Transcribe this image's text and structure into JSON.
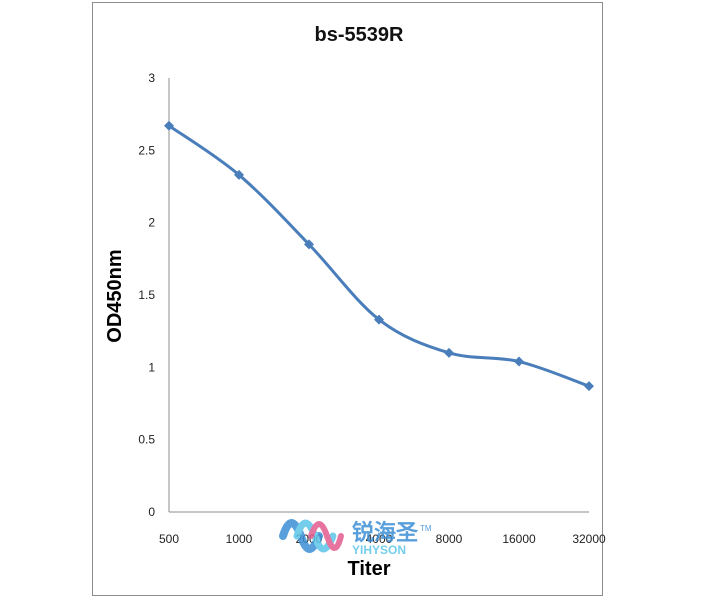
{
  "chart_data": {
    "type": "line",
    "title": "bs-5539R",
    "xlabel": "Titer",
    "ylabel": "OD450nm",
    "categories": [
      "500",
      "1000",
      "2000",
      "4000",
      "8000",
      "16000",
      "32000"
    ],
    "series": [
      {
        "values": [
          2.67,
          2.33,
          1.85,
          1.33,
          1.1,
          1.04,
          0.87
        ]
      }
    ],
    "ylim": [
      0,
      3
    ],
    "yticks": [
      "0",
      "0.5",
      "1",
      "1.5",
      "2",
      "2.5",
      "3"
    ],
    "grid": false,
    "legend": "none",
    "series_color": "#4a7ebb",
    "marker": "diamond"
  },
  "watermark": {
    "cn_text": "锐海圣",
    "tm": "TM",
    "en_text": "YIHYSON",
    "colors": [
      "#3b8fd6",
      "#5cc6e8",
      "#f0a030",
      "#e35b8f"
    ]
  }
}
